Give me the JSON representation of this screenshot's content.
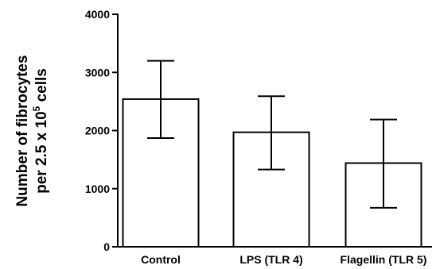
{
  "chart_data": {
    "type": "bar",
    "categories": [
      "Control",
      "LPS (TLR 4)",
      "Flagellin (TLR 5)"
    ],
    "values": [
      2540,
      1970,
      1440
    ],
    "error_bars": [
      {
        "low": 1870,
        "high": 3200
      },
      {
        "low": 1330,
        "high": 2590
      },
      {
        "low": 670,
        "high": 2190
      }
    ],
    "title": "",
    "xlabel": "",
    "ylabel": {
      "line1": "Number of fibrocytes",
      "line2_prefix": "per 2.5 x 10",
      "line2_superscript": "5",
      "line2_suffix": " cells"
    },
    "ylim": [
      0,
      4000
    ],
    "yticks": [
      0,
      1000,
      2000,
      3000,
      4000
    ],
    "grid": false,
    "legend": "none",
    "colors": {
      "bar_fill": "#ffffff",
      "bar_stroke": "#000000",
      "axis": "#000000"
    }
  }
}
